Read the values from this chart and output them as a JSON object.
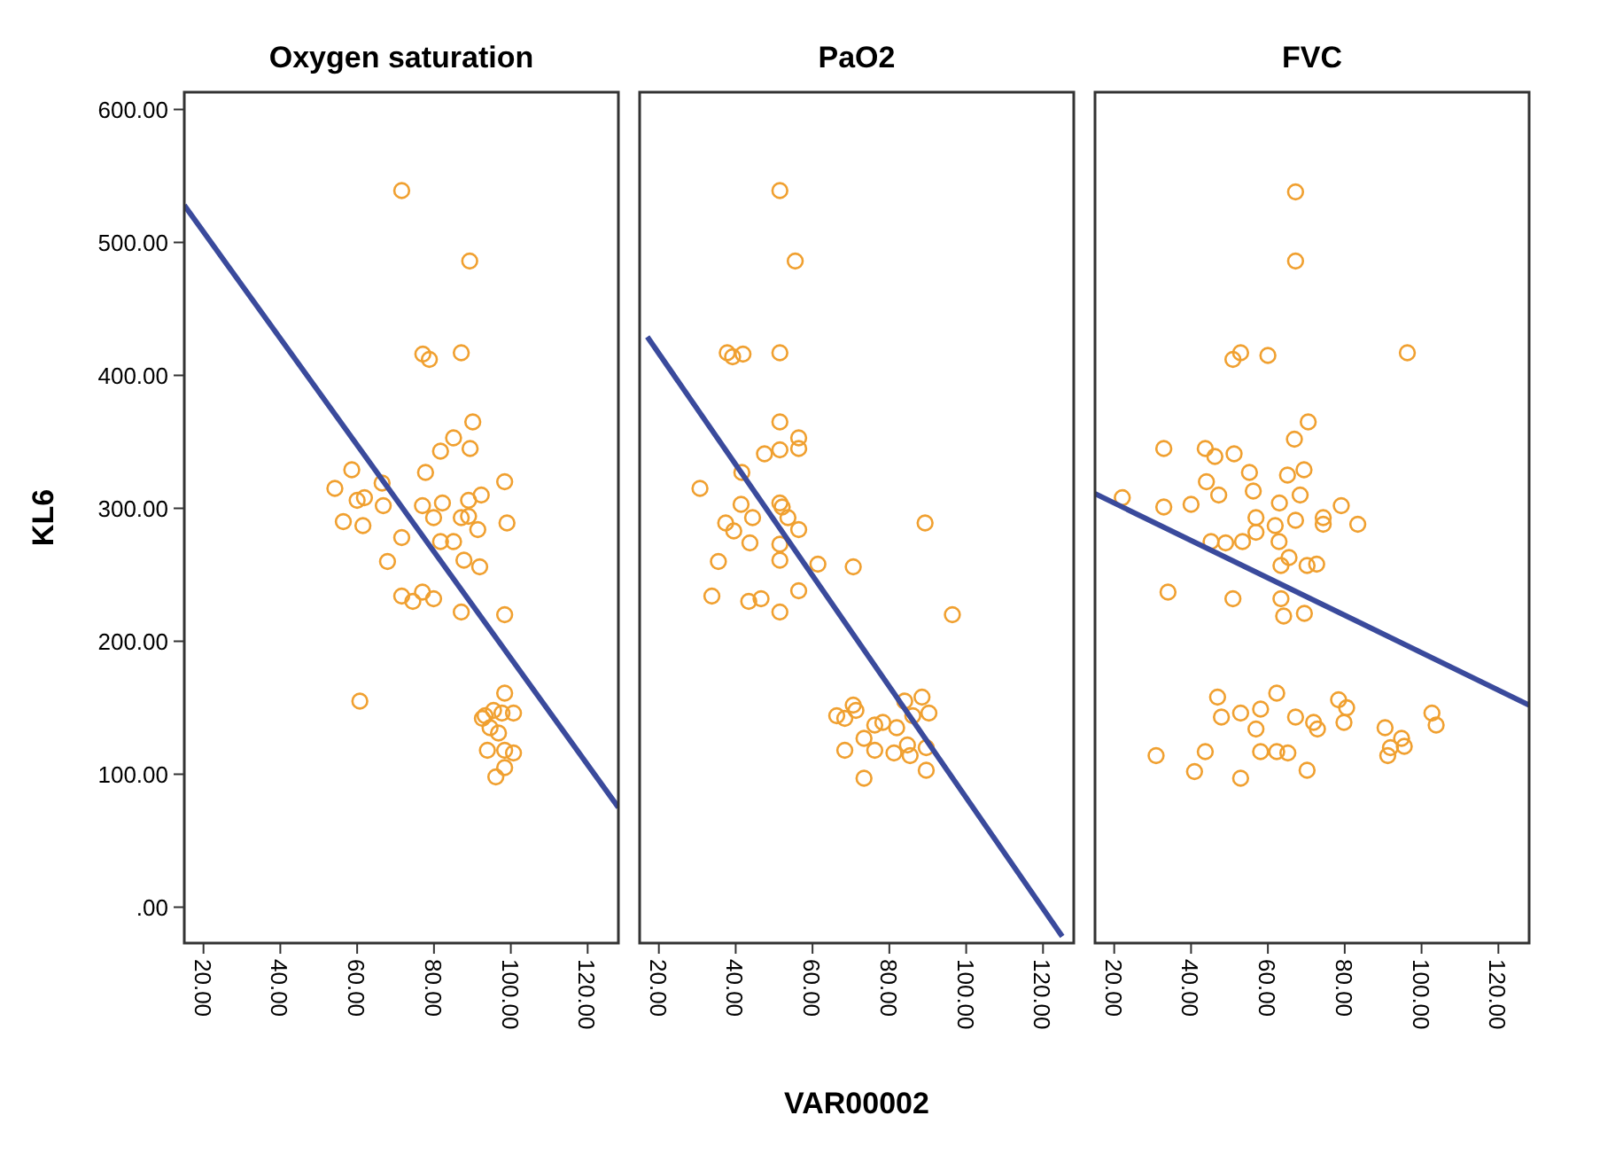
{
  "chart_data": [
    {
      "type": "scatter",
      "title": "Oxygen saturation",
      "ylabel": "KL6",
      "xlim": [
        15,
        128
      ],
      "ylim": [
        -27,
        613
      ],
      "grid": false,
      "xticks": [
        {
          "value": 20,
          "label": "20.00"
        },
        {
          "value": 40,
          "label": "40.00"
        },
        {
          "value": 60,
          "label": "60.00"
        },
        {
          "value": 80,
          "label": "80.00"
        },
        {
          "value": 100,
          "label": "100.00"
        },
        {
          "value": 120,
          "label": "120.00"
        }
      ],
      "yticks": [
        {
          "value": 0,
          "label": ".00"
        },
        {
          "value": 100,
          "label": "100.00"
        },
        {
          "value": 200,
          "label": "200.00"
        },
        {
          "value": 300,
          "label": "300.00"
        },
        {
          "value": 400,
          "label": "400.00"
        },
        {
          "value": 500,
          "label": "500.00"
        },
        {
          "value": 600,
          "label": "600.00"
        }
      ],
      "series": [
        {
          "type": "scatter",
          "marker": "circle",
          "color": "#f0a030",
          "x": [
            71.6,
            89.3,
            77.1,
            78.8,
            87.1,
            90.1,
            85.1,
            81.7,
            89.4,
            58.6,
            77.8,
            54.2,
            66.5,
            98.4,
            60,
            61.9,
            77,
            82.2,
            66.8,
            92.3,
            89,
            56.4,
            61.5,
            79.9,
            87.1,
            89,
            99,
            91.4,
            71.6,
            81.7,
            85.1,
            67.9,
            87.8,
            91.9,
            71.6,
            74.5,
            77,
            79.9,
            87.1,
            98.4,
            60.7,
            98.4,
            93.3,
            95.5,
            97.7,
            100.7,
            94.6,
            96.8,
            93.9,
            98.4,
            100.7,
            96.1,
            98.4,
            92.6
          ],
          "values": [
            539,
            486,
            416,
            412,
            417,
            365,
            353,
            343,
            345,
            329,
            327,
            315,
            319,
            320,
            306,
            308,
            302,
            304,
            302,
            310,
            306,
            290,
            287,
            293,
            293,
            294,
            289,
            284,
            278,
            275,
            275,
            260,
            261,
            256,
            234,
            230,
            237,
            232,
            222,
            220,
            155,
            161,
            144,
            148,
            146,
            146,
            135,
            131,
            118,
            118,
            116,
            98,
            105,
            142
          ]
        },
        {
          "type": "line",
          "marker": "none",
          "line_style": "solid",
          "color": "#3a4a9c",
          "x": [
            15,
            128
          ],
          "values": [
            528,
            75
          ]
        }
      ]
    },
    {
      "type": "scatter",
      "title": "PaO2",
      "xlabel": "VAR00002",
      "xlim": [
        15,
        128
      ],
      "ylim": [
        -27,
        613
      ],
      "grid": false,
      "tick_labels": "x",
      "xticks": [
        {
          "value": 20,
          "label": "20.00"
        },
        {
          "value": 40,
          "label": "40.00"
        },
        {
          "value": 60,
          "label": "60.00"
        },
        {
          "value": 80,
          "label": "80.00"
        },
        {
          "value": 100,
          "label": "100.00"
        },
        {
          "value": 120,
          "label": "120.00"
        }
      ],
      "series": [
        {
          "type": "scatter",
          "marker": "circle",
          "color": "#f0a030",
          "x": [
            51.5,
            55.5,
            37.8,
            39.2,
            41.9,
            51.5,
            51.5,
            56.4,
            56.4,
            47.5,
            51.5,
            41.6,
            30.7,
            41.4,
            44.4,
            51.5,
            52.1,
            53.6,
            56.4,
            37.4,
            39.5,
            43.7,
            51.5,
            51.5,
            35.5,
            61.4,
            70.6,
            89.3,
            33.8,
            43.4,
            46.6,
            56.4,
            51.5,
            96.4,
            66.3,
            68.4,
            70.6,
            71.3,
            76.2,
            78.3,
            81.9,
            84,
            88.5,
            90.3,
            86.1,
            68.4,
            73.4,
            76.2,
            81.2,
            85.4,
            89.6,
            89.6,
            73.4,
            84.7
          ],
          "values": [
            539,
            486,
            417,
            414,
            416,
            417,
            365,
            353,
            345,
            341,
            344,
            327,
            315,
            303,
            293,
            304,
            301,
            293,
            284,
            289,
            283,
            274,
            273,
            261,
            260,
            258,
            256,
            289,
            234,
            230,
            232,
            238,
            222,
            220,
            144,
            142,
            152,
            148,
            137,
            139,
            135,
            155,
            158,
            146,
            144,
            118,
            127,
            118,
            116,
            114,
            120,
            103,
            97,
            122
          ]
        },
        {
          "type": "line",
          "marker": "none",
          "line_style": "solid",
          "color": "#3a4a9c",
          "x": [
            17,
            125
          ],
          "values": [
            429,
            -22
          ]
        }
      ]
    },
    {
      "type": "scatter",
      "title": "FVC",
      "xlim": [
        15,
        128
      ],
      "ylim": [
        -27,
        613
      ],
      "grid": false,
      "tick_labels": "x",
      "xticks": [
        {
          "value": 20,
          "label": "20.00"
        },
        {
          "value": 40,
          "label": "40.00"
        },
        {
          "value": 60,
          "label": "60.00"
        },
        {
          "value": 80,
          "label": "80.00"
        },
        {
          "value": 100,
          "label": "100.00"
        },
        {
          "value": 120,
          "label": "120.00"
        }
      ],
      "series": [
        {
          "type": "scatter",
          "marker": "circle",
          "color": "#f0a030",
          "x": [
            67.2,
            67.2,
            50.9,
            52.9,
            60,
            96.3,
            70.5,
            66.9,
            32.9,
            43.7,
            46.2,
            51.2,
            55.2,
            44,
            65.1,
            69.4,
            22.1,
            32.9,
            40,
            47.2,
            56.2,
            56.9,
            63,
            68.4,
            67.2,
            74.4,
            79.1,
            83.4,
            74.4,
            45.2,
            49,
            53.4,
            61.9,
            62.9,
            56.9,
            63.4,
            65.5,
            70.2,
            72.7,
            34,
            50.9,
            63.4,
            64.1,
            69.5,
            46.9,
            47.9,
            52.9,
            58.1,
            62.3,
            56.9,
            67.2,
            71.9,
            72.9,
            78.4,
            80.5,
            79.8,
            90.5,
            94.8,
            91.9,
            91.2,
            95.5,
            102.7,
            103.8,
            30.9,
            43.7,
            40.9,
            52.9,
            58.1,
            62.3,
            65.2,
            70.2
          ],
          "values": [
            538,
            486,
            412,
            417,
            415,
            417,
            365,
            352,
            345,
            345,
            339,
            341,
            327,
            320,
            325,
            329,
            308,
            301,
            303,
            310,
            313,
            293,
            304,
            310,
            291,
            293,
            302,
            288,
            288,
            275,
            274,
            275,
            287,
            275,
            282,
            257,
            263,
            257,
            258,
            237,
            232,
            232,
            219,
            221,
            158,
            143,
            146,
            149,
            161,
            134,
            143,
            139,
            134,
            156,
            150,
            139,
            135,
            127,
            120,
            114,
            121,
            146,
            137,
            114,
            117,
            102,
            97,
            117,
            117,
            116,
            103
          ]
        },
        {
          "type": "line",
          "marker": "none",
          "line_style": "solid",
          "color": "#3a4a9c",
          "x": [
            15,
            128
          ],
          "values": [
            311,
            152
          ]
        }
      ]
    }
  ]
}
